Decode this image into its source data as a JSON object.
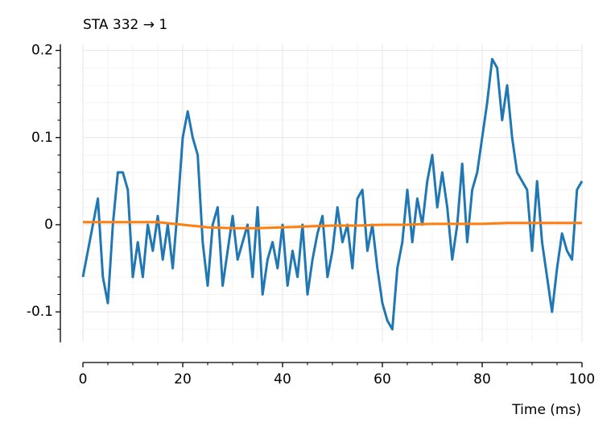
{
  "chart_data": {
    "type": "line",
    "title": "STA 332 → 1",
    "xlabel": "Time (ms)",
    "xlim": [
      0,
      100
    ],
    "xticks": [
      0,
      20,
      40,
      60,
      80,
      100
    ],
    "xminorticks": [
      5,
      10,
      15,
      25,
      30,
      35,
      45,
      50,
      55,
      65,
      70,
      75,
      85,
      90,
      95
    ],
    "ylim": [
      -0.135,
      0.207
    ],
    "yticks": [
      -0.1,
      0,
      0.1,
      0.2
    ],
    "yminorticks": [
      -0.12,
      -0.08,
      -0.06,
      -0.04,
      -0.02,
      0.02,
      0.04,
      0.06,
      0.08,
      0.12,
      0.14,
      0.16,
      0.18
    ],
    "grid": true,
    "series": [
      {
        "color": "#1f77b4",
        "x": [
          0,
          1,
          2,
          3,
          4,
          5,
          6,
          7,
          8,
          9,
          10,
          11,
          12,
          13,
          14,
          15,
          16,
          17,
          18,
          19,
          20,
          21,
          22,
          23,
          24,
          25,
          26,
          27,
          28,
          29,
          30,
          31,
          32,
          33,
          34,
          35,
          36,
          37,
          38,
          39,
          40,
          41,
          42,
          43,
          44,
          45,
          46,
          47,
          48,
          49,
          50,
          51,
          52,
          53,
          54,
          55,
          56,
          57,
          58,
          59,
          60,
          61,
          62,
          63,
          64,
          65,
          66,
          67,
          68,
          69,
          70,
          71,
          72,
          73,
          74,
          75,
          76,
          77,
          78,
          79,
          80,
          81,
          82,
          83,
          84,
          85,
          86,
          87,
          88,
          89,
          90,
          91,
          92,
          93,
          94,
          95,
          96,
          97,
          98,
          99,
          100
        ],
        "values": [
          -0.06,
          -0.03,
          0.0,
          0.03,
          -0.06,
          -0.09,
          0.0,
          0.06,
          0.06,
          0.04,
          -0.06,
          -0.02,
          -0.06,
          0.0,
          -0.03,
          0.01,
          -0.04,
          0.0,
          -0.05,
          0.02,
          0.1,
          0.13,
          0.1,
          0.08,
          -0.02,
          -0.07,
          0.0,
          0.02,
          -0.07,
          -0.03,
          0.01,
          -0.04,
          -0.02,
          0.0,
          -0.06,
          0.02,
          -0.08,
          -0.04,
          -0.02,
          -0.05,
          0.0,
          -0.07,
          -0.03,
          -0.06,
          0.0,
          -0.08,
          -0.04,
          -0.01,
          0.01,
          -0.06,
          -0.03,
          0.02,
          -0.02,
          0.0,
          -0.05,
          0.03,
          0.04,
          -0.03,
          0.0,
          -0.05,
          -0.09,
          -0.11,
          -0.12,
          -0.05,
          -0.02,
          0.04,
          -0.02,
          0.03,
          0.0,
          0.05,
          0.08,
          0.02,
          0.06,
          0.02,
          -0.04,
          0.0,
          0.07,
          -0.02,
          0.04,
          0.06,
          0.1,
          0.14,
          0.19,
          0.18,
          0.12,
          0.16,
          0.1,
          0.06,
          0.05,
          0.04,
          -0.03,
          0.05,
          -0.02,
          -0.06,
          -0.1,
          -0.05,
          -0.01,
          -0.03,
          -0.04,
          0.04,
          0.05
        ]
      },
      {
        "color": "#ff7f0e",
        "x": [
          0,
          5,
          10,
          15,
          20,
          25,
          30,
          35,
          40,
          45,
          50,
          55,
          60,
          65,
          70,
          75,
          80,
          85,
          90,
          95,
          100
        ],
        "values": [
          0.003,
          0.003,
          0.003,
          0.003,
          0.0,
          -0.003,
          -0.004,
          -0.004,
          -0.003,
          -0.002,
          -0.001,
          -0.001,
          0.0,
          0.0,
          0.001,
          0.001,
          0.001,
          0.002,
          0.002,
          0.002,
          0.002
        ]
      }
    ]
  }
}
